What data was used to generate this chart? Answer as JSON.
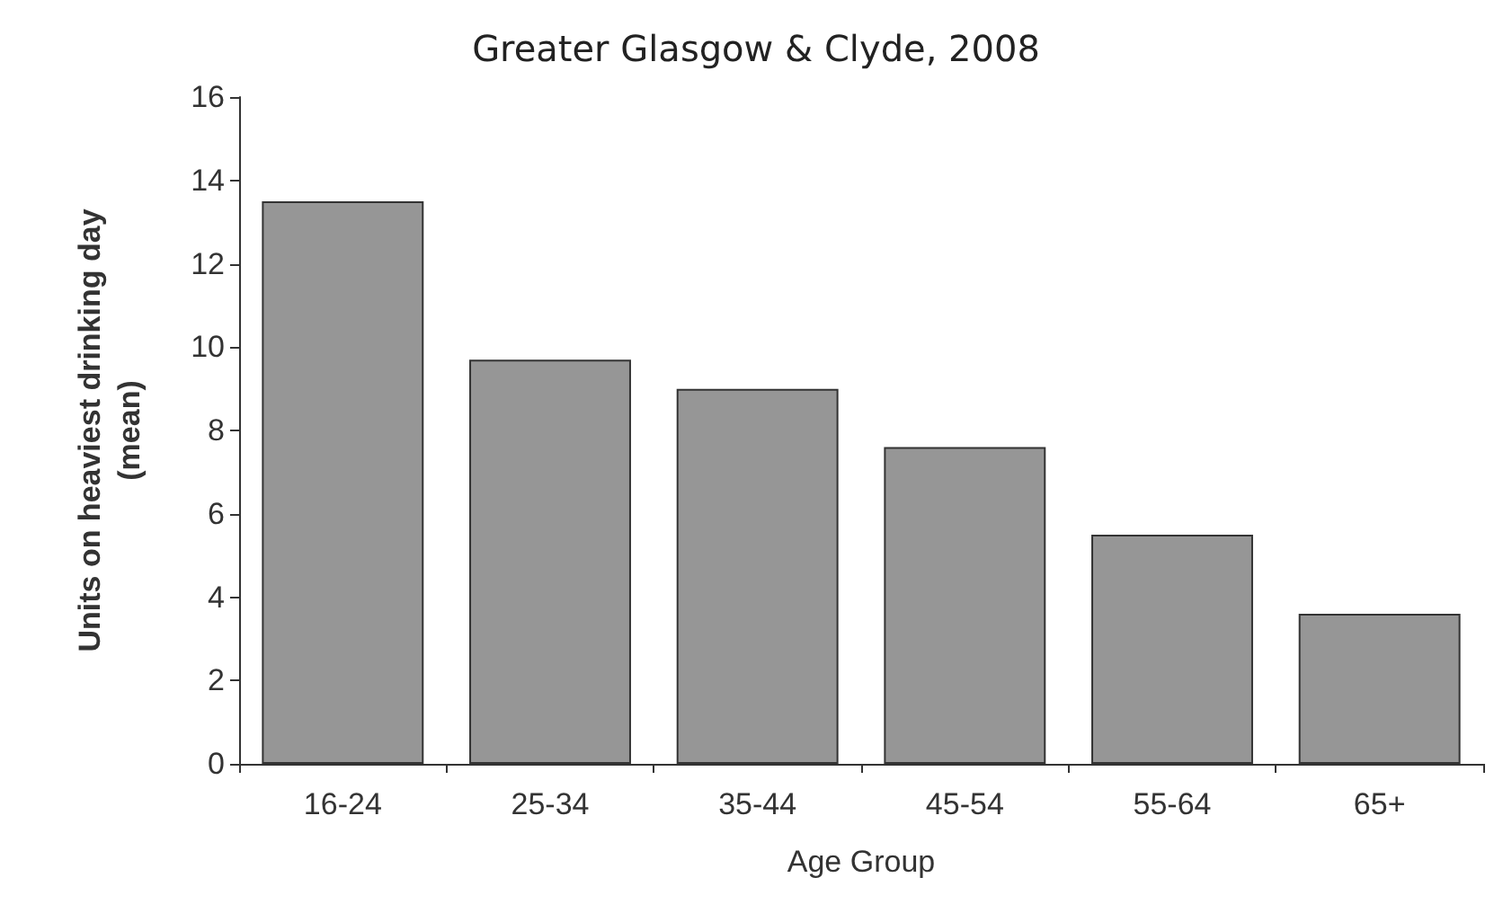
{
  "chart_data": {
    "type": "bar",
    "title": "Greater Glasgow & Clyde, 2008",
    "xlabel": "Age Group",
    "ylabel": "Units on heaviest drinking day\n(mean)",
    "categories": [
      "16-24",
      "25-34",
      "35-44",
      "45-54",
      "55-64",
      "65+"
    ],
    "values": [
      13.5,
      9.7,
      9.0,
      7.6,
      5.5,
      3.6
    ],
    "color": "#969696",
    "ylim": [
      0,
      16
    ],
    "yticks": [
      0,
      2,
      4,
      6,
      8,
      10,
      12,
      14,
      16
    ],
    "grid": false
  }
}
